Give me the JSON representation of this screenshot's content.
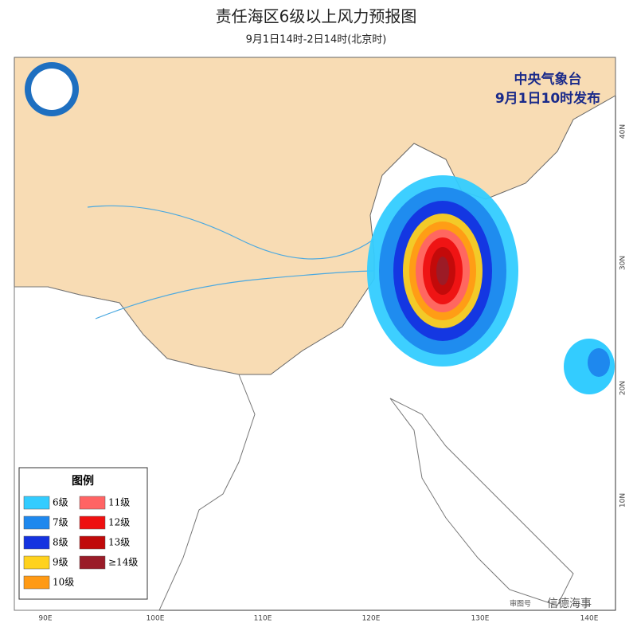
{
  "header": {
    "title": "责任海区6级以上风力预报图",
    "subtitle": "9月1日14时-2日14时(北京时)"
  },
  "issuer": {
    "name": "中央气象台",
    "time": "9月1日10时发布"
  },
  "legend": {
    "title": "图例",
    "items": [
      {
        "label": "6级",
        "color": "#33ccff"
      },
      {
        "label": "7级",
        "color": "#1e88ee"
      },
      {
        "label": "8级",
        "color": "#1433e0"
      },
      {
        "label": "9级",
        "color": "#ffd21e"
      },
      {
        "label": "10级",
        "color": "#ff9a14"
      },
      {
        "label": "11级",
        "color": "#ff6464"
      },
      {
        "label": "12级",
        "color": "#ee1010"
      },
      {
        "label": "13级",
        "color": "#c00a0a"
      },
      {
        "label": "≥14级",
        "color": "#9a1c28"
      }
    ]
  },
  "axes": {
    "longitudes": [
      "90E",
      "100E",
      "110E",
      "120E",
      "130E",
      "140E"
    ],
    "latitudes": [
      "40N",
      "30N",
      "20N",
      "10N"
    ]
  },
  "watermark": {
    "text": "信德海事",
    "map_no": "审图号"
  }
}
